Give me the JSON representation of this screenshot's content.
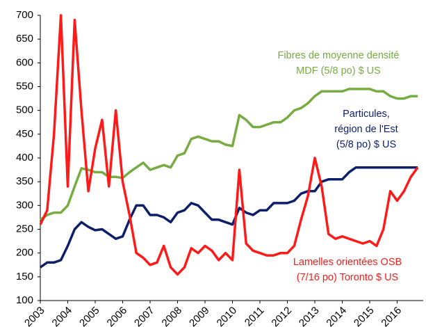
{
  "chart_data": {
    "type": "line",
    "x": [
      2003,
      2003.25,
      2003.5,
      2003.75,
      2004,
      2004.25,
      2004.5,
      2004.75,
      2005,
      2005.25,
      2005.5,
      2005.75,
      2006,
      2006.25,
      2006.5,
      2006.75,
      2007,
      2007.25,
      2007.5,
      2007.75,
      2008,
      2008.25,
      2008.5,
      2008.75,
      2009,
      2009.25,
      2009.5,
      2009.75,
      2010,
      2010.25,
      2010.5,
      2010.75,
      2011,
      2011.25,
      2011.5,
      2011.75,
      2012,
      2012.25,
      2012.5,
      2012.75,
      2013,
      2013.25,
      2013.5,
      2013.75,
      2014,
      2014.25,
      2014.5,
      2014.75,
      2015,
      2015.25,
      2015.5,
      2015.75,
      2016,
      2016.25,
      2016.5,
      2016.75
    ],
    "series": [
      {
        "label": [
          "Fibres de moyenne densité",
          "MDF (5/8 po) $ US"
        ],
        "color": "#77ac42",
        "values": [
          270,
          280,
          285,
          285,
          300,
          340,
          378,
          375,
          370,
          370,
          360,
          360,
          358,
          370,
          380,
          390,
          375,
          380,
          385,
          380,
          405,
          410,
          440,
          445,
          440,
          435,
          435,
          428,
          425,
          490,
          480,
          465,
          465,
          470,
          475,
          475,
          485,
          500,
          505,
          515,
          530,
          540,
          540,
          540,
          540,
          545,
          545,
          545,
          545,
          540,
          540,
          530,
          525,
          525,
          530,
          530
        ]
      },
      {
        "label": [
          "Particules,",
          "région de l'Est",
          "(5/8 po) $ US"
        ],
        "color": "#0d1f6b",
        "values": [
          170,
          180,
          180,
          185,
          215,
          250,
          265,
          255,
          248,
          250,
          240,
          230,
          235,
          270,
          300,
          300,
          280,
          280,
          275,
          265,
          285,
          290,
          305,
          300,
          285,
          270,
          270,
          265,
          260,
          295,
          285,
          280,
          290,
          290,
          305,
          305,
          305,
          310,
          325,
          330,
          330,
          350,
          355,
          355,
          355,
          370,
          380,
          380,
          380,
          380,
          380,
          380,
          380,
          380,
          380,
          380
        ]
      },
      {
        "label": [
          "Lamelles orientées OSB",
          "(7/16 po) Toronto $ US"
        ],
        "color": "#ff1a1a",
        "values": [
          260,
          290,
          450,
          700,
          340,
          690,
          500,
          330,
          420,
          480,
          340,
          500,
          350,
          280,
          200,
          190,
          175,
          180,
          215,
          170,
          155,
          170,
          210,
          200,
          215,
          205,
          185,
          200,
          185,
          375,
          220,
          205,
          200,
          195,
          195,
          200,
          200,
          215,
          270,
          320,
          400,
          340,
          240,
          230,
          235,
          230,
          225,
          220,
          225,
          215,
          250,
          330,
          310,
          330,
          360,
          380
        ]
      }
    ],
    "xlim": [
      2003,
      2016.95
    ],
    "xticks": [
      2003,
      2004,
      2005,
      2006,
      2007,
      2008,
      2009,
      2010,
      2011,
      2012,
      2013,
      2014,
      2015,
      2016
    ],
    "ylim": [
      100,
      700
    ],
    "yticks": [
      100,
      150,
      200,
      250,
      300,
      350,
      400,
      450,
      500,
      550,
      600,
      650,
      700
    ]
  }
}
